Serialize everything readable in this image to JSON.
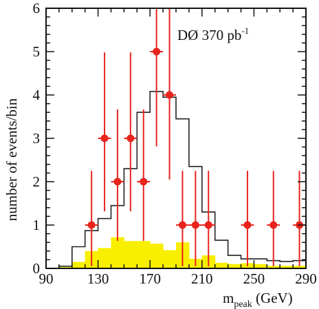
{
  "chart_data": {
    "type": "histogram",
    "annotation": {
      "main": "DØ 370 pb",
      "superscript": "-1"
    },
    "xlabel": {
      "main": "m",
      "subscript": "peak",
      "unit": " (GeV)"
    },
    "ylabel": "number of events/bin",
    "xlim": [
      90,
      290
    ],
    "ylim": [
      0,
      6
    ],
    "x_ticks": [
      90,
      130,
      170,
      210,
      250,
      290
    ],
    "y_ticks": [
      0,
      1,
      2,
      3,
      4,
      5,
      6
    ],
    "bin_width": 10,
    "data_points": {
      "x": [
        125,
        135,
        145,
        155,
        165,
        175,
        185,
        195,
        205,
        215,
        245,
        265,
        285
      ],
      "y": [
        1,
        3,
        2,
        3,
        2,
        5,
        4,
        1,
        1,
        1,
        1,
        1,
        1
      ]
    },
    "signal_plus_background": {
      "bin_edges": [
        100,
        110,
        120,
        130,
        140,
        150,
        160,
        170,
        180,
        190,
        200,
        210,
        220,
        230,
        240,
        250,
        260,
        270,
        280,
        290
      ],
      "values": [
        0.05,
        0.5,
        0.87,
        1.15,
        1.45,
        2.3,
        3.6,
        4.08,
        3.95,
        3.45,
        2.35,
        1.3,
        0.65,
        0.3,
        0.22,
        0.22,
        0.18,
        0.16,
        0.18
      ]
    },
    "background": {
      "bin_edges": [
        100,
        110,
        120,
        130,
        140,
        150,
        160,
        170,
        180,
        190,
        200,
        210,
        220,
        230,
        240,
        250,
        260,
        270,
        280,
        290
      ],
      "values": [
        0.03,
        0.15,
        0.4,
        0.47,
        0.72,
        0.63,
        0.63,
        0.57,
        0.42,
        0.6,
        0.22,
        0.3,
        0.13,
        0.1,
        0.12,
        0.1,
        0.06,
        0.06,
        0.06
      ]
    },
    "colors": {
      "data": "#e8241d",
      "background_fill": "#f8ef00",
      "line": "#222222"
    }
  }
}
